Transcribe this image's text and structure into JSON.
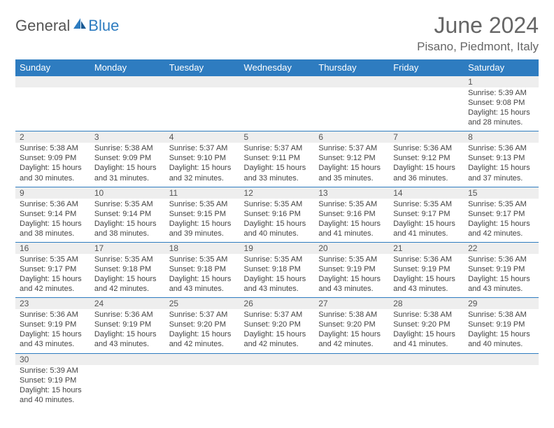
{
  "brand": {
    "part1": "General",
    "part2": "Blue"
  },
  "title": "June 2024",
  "location": "Pisano, Piedmont, Italy",
  "colors": {
    "accent": "#2e7cc0",
    "numrow_bg": "#eeeeee",
    "text": "#444"
  },
  "day_headers": [
    "Sunday",
    "Monday",
    "Tuesday",
    "Wednesday",
    "Thursday",
    "Friday",
    "Saturday"
  ],
  "weeks": [
    [
      null,
      null,
      null,
      null,
      null,
      null,
      {
        "n": "1",
        "sr": "Sunrise: 5:39 AM",
        "ss": "Sunset: 9:08 PM",
        "d1": "Daylight: 15 hours",
        "d2": "and 28 minutes."
      }
    ],
    [
      {
        "n": "2",
        "sr": "Sunrise: 5:38 AM",
        "ss": "Sunset: 9:09 PM",
        "d1": "Daylight: 15 hours",
        "d2": "and 30 minutes."
      },
      {
        "n": "3",
        "sr": "Sunrise: 5:38 AM",
        "ss": "Sunset: 9:09 PM",
        "d1": "Daylight: 15 hours",
        "d2": "and 31 minutes."
      },
      {
        "n": "4",
        "sr": "Sunrise: 5:37 AM",
        "ss": "Sunset: 9:10 PM",
        "d1": "Daylight: 15 hours",
        "d2": "and 32 minutes."
      },
      {
        "n": "5",
        "sr": "Sunrise: 5:37 AM",
        "ss": "Sunset: 9:11 PM",
        "d1": "Daylight: 15 hours",
        "d2": "and 33 minutes."
      },
      {
        "n": "6",
        "sr": "Sunrise: 5:37 AM",
        "ss": "Sunset: 9:12 PM",
        "d1": "Daylight: 15 hours",
        "d2": "and 35 minutes."
      },
      {
        "n": "7",
        "sr": "Sunrise: 5:36 AM",
        "ss": "Sunset: 9:12 PM",
        "d1": "Daylight: 15 hours",
        "d2": "and 36 minutes."
      },
      {
        "n": "8",
        "sr": "Sunrise: 5:36 AM",
        "ss": "Sunset: 9:13 PM",
        "d1": "Daylight: 15 hours",
        "d2": "and 37 minutes."
      }
    ],
    [
      {
        "n": "9",
        "sr": "Sunrise: 5:36 AM",
        "ss": "Sunset: 9:14 PM",
        "d1": "Daylight: 15 hours",
        "d2": "and 38 minutes."
      },
      {
        "n": "10",
        "sr": "Sunrise: 5:35 AM",
        "ss": "Sunset: 9:14 PM",
        "d1": "Daylight: 15 hours",
        "d2": "and 38 minutes."
      },
      {
        "n": "11",
        "sr": "Sunrise: 5:35 AM",
        "ss": "Sunset: 9:15 PM",
        "d1": "Daylight: 15 hours",
        "d2": "and 39 minutes."
      },
      {
        "n": "12",
        "sr": "Sunrise: 5:35 AM",
        "ss": "Sunset: 9:16 PM",
        "d1": "Daylight: 15 hours",
        "d2": "and 40 minutes."
      },
      {
        "n": "13",
        "sr": "Sunrise: 5:35 AM",
        "ss": "Sunset: 9:16 PM",
        "d1": "Daylight: 15 hours",
        "d2": "and 41 minutes."
      },
      {
        "n": "14",
        "sr": "Sunrise: 5:35 AM",
        "ss": "Sunset: 9:17 PM",
        "d1": "Daylight: 15 hours",
        "d2": "and 41 minutes."
      },
      {
        "n": "15",
        "sr": "Sunrise: 5:35 AM",
        "ss": "Sunset: 9:17 PM",
        "d1": "Daylight: 15 hours",
        "d2": "and 42 minutes."
      }
    ],
    [
      {
        "n": "16",
        "sr": "Sunrise: 5:35 AM",
        "ss": "Sunset: 9:17 PM",
        "d1": "Daylight: 15 hours",
        "d2": "and 42 minutes."
      },
      {
        "n": "17",
        "sr": "Sunrise: 5:35 AM",
        "ss": "Sunset: 9:18 PM",
        "d1": "Daylight: 15 hours",
        "d2": "and 42 minutes."
      },
      {
        "n": "18",
        "sr": "Sunrise: 5:35 AM",
        "ss": "Sunset: 9:18 PM",
        "d1": "Daylight: 15 hours",
        "d2": "and 43 minutes."
      },
      {
        "n": "19",
        "sr": "Sunrise: 5:35 AM",
        "ss": "Sunset: 9:18 PM",
        "d1": "Daylight: 15 hours",
        "d2": "and 43 minutes."
      },
      {
        "n": "20",
        "sr": "Sunrise: 5:35 AM",
        "ss": "Sunset: 9:19 PM",
        "d1": "Daylight: 15 hours",
        "d2": "and 43 minutes."
      },
      {
        "n": "21",
        "sr": "Sunrise: 5:36 AM",
        "ss": "Sunset: 9:19 PM",
        "d1": "Daylight: 15 hours",
        "d2": "and 43 minutes."
      },
      {
        "n": "22",
        "sr": "Sunrise: 5:36 AM",
        "ss": "Sunset: 9:19 PM",
        "d1": "Daylight: 15 hours",
        "d2": "and 43 minutes."
      }
    ],
    [
      {
        "n": "23",
        "sr": "Sunrise: 5:36 AM",
        "ss": "Sunset: 9:19 PM",
        "d1": "Daylight: 15 hours",
        "d2": "and 43 minutes."
      },
      {
        "n": "24",
        "sr": "Sunrise: 5:36 AM",
        "ss": "Sunset: 9:19 PM",
        "d1": "Daylight: 15 hours",
        "d2": "and 43 minutes."
      },
      {
        "n": "25",
        "sr": "Sunrise: 5:37 AM",
        "ss": "Sunset: 9:20 PM",
        "d1": "Daylight: 15 hours",
        "d2": "and 42 minutes."
      },
      {
        "n": "26",
        "sr": "Sunrise: 5:37 AM",
        "ss": "Sunset: 9:20 PM",
        "d1": "Daylight: 15 hours",
        "d2": "and 42 minutes."
      },
      {
        "n": "27",
        "sr": "Sunrise: 5:38 AM",
        "ss": "Sunset: 9:20 PM",
        "d1": "Daylight: 15 hours",
        "d2": "and 42 minutes."
      },
      {
        "n": "28",
        "sr": "Sunrise: 5:38 AM",
        "ss": "Sunset: 9:20 PM",
        "d1": "Daylight: 15 hours",
        "d2": "and 41 minutes."
      },
      {
        "n": "29",
        "sr": "Sunrise: 5:38 AM",
        "ss": "Sunset: 9:19 PM",
        "d1": "Daylight: 15 hours",
        "d2": "and 40 minutes."
      }
    ],
    [
      {
        "n": "30",
        "sr": "Sunrise: 5:39 AM",
        "ss": "Sunset: 9:19 PM",
        "d1": "Daylight: 15 hours",
        "d2": "and 40 minutes."
      },
      null,
      null,
      null,
      null,
      null,
      null
    ]
  ]
}
